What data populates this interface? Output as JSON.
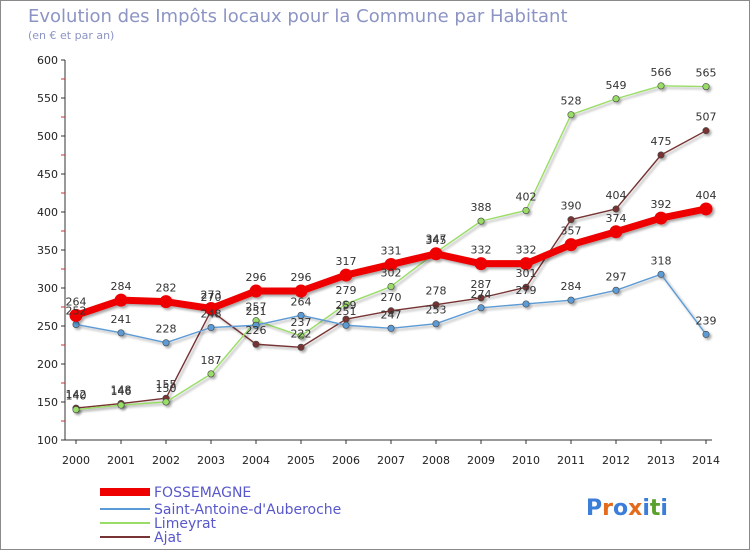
{
  "chart_data": {
    "type": "line",
    "title": "Evolution des Impôts locaux pour la Commune par Habitant",
    "subtitle": "(en € et par an)",
    "x": [
      2000,
      2001,
      2002,
      2003,
      2004,
      2005,
      2006,
      2007,
      2008,
      2009,
      2010,
      2011,
      2012,
      2013,
      2014
    ],
    "ylim": [
      100,
      600
    ],
    "yticks": [
      100,
      150,
      200,
      250,
      300,
      350,
      400,
      450,
      500,
      550,
      600
    ],
    "grid": false,
    "legend_position": "bottom-left",
    "series": [
      {
        "name": "FOSSEMAGNE",
        "color": "#ee0000",
        "values": [
          264,
          284,
          282,
          273,
          296,
          296,
          317,
          331,
          345,
          332,
          332,
          357,
          374,
          392,
          404
        ]
      },
      {
        "name": "Saint-Antoine-d'Auberoche",
        "color": "#5b9bd5",
        "values": [
          252,
          241,
          228,
          248,
          251,
          264,
          251,
          247,
          253,
          274,
          279,
          284,
          297,
          318,
          239
        ]
      },
      {
        "name": "Limeyrat",
        "color": "#99dd66",
        "values": [
          140,
          146,
          150,
          187,
          257,
          237,
          279,
          302,
          347,
          388,
          402,
          528,
          549,
          566,
          565
        ]
      },
      {
        "name": "Ajat",
        "color": "#773333",
        "values": [
          142,
          148,
          155,
          270,
          226,
          222,
          259,
          270,
          278,
          287,
          301,
          390,
          404,
          475,
          507
        ]
      }
    ]
  },
  "logo": {
    "text": "Proxiti"
  }
}
